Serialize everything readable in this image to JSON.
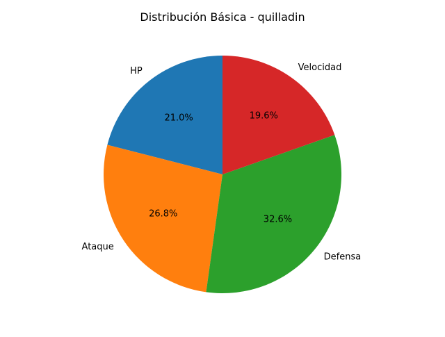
{
  "chart_data": {
    "type": "pie",
    "title": "Distribución Básica - quilladin",
    "start_angle_deg": 90,
    "direction": "counterclockwise",
    "slices": [
      {
        "label": "HP",
        "value": 21.0,
        "pct_label": "21.0%",
        "color": "#1f77b4"
      },
      {
        "label": "Ataque",
        "value": 26.8,
        "pct_label": "26.8%",
        "color": "#ff7f0e"
      },
      {
        "label": "Defensa",
        "value": 32.6,
        "pct_label": "32.6%",
        "color": "#2ca02c"
      },
      {
        "label": "Velocidad",
        "value": 19.6,
        "pct_label": "19.6%",
        "color": "#d62728"
      }
    ]
  }
}
